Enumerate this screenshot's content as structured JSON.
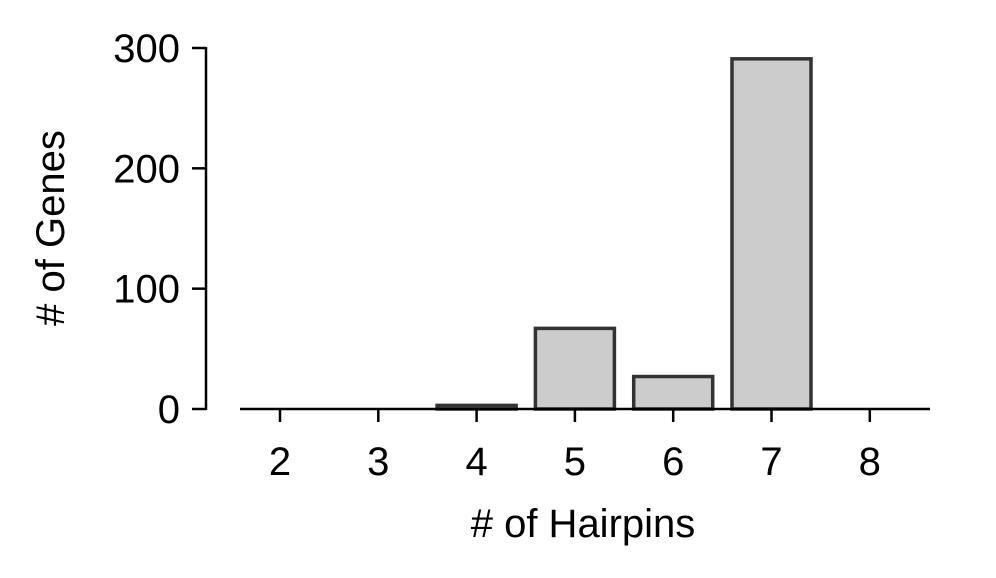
{
  "chart_data": {
    "type": "bar",
    "title": "",
    "xlabel": "# of Hairpins",
    "ylabel": "# of Genes",
    "categories": [
      "2",
      "3",
      "4",
      "5",
      "6",
      "7",
      "8"
    ],
    "values": [
      0,
      0,
      3,
      67,
      27,
      291,
      0
    ],
    "ylim": [
      0,
      300
    ],
    "yticks": [
      0,
      100,
      200,
      300
    ],
    "ytick_labels": [
      "0",
      "100",
      "200",
      "300"
    ],
    "grid": false,
    "legend": "none",
    "colors": {
      "bar_fill": "#cccccc",
      "bar_edge": "#333333",
      "axis": "#000000"
    }
  }
}
